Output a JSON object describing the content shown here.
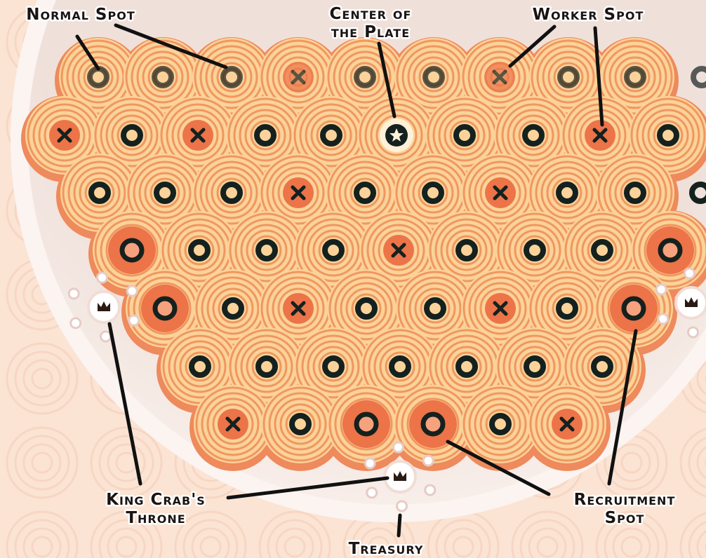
{
  "labels": [
    {
      "lines": [
        "Normal Spot"
      ]
    },
    {
      "lines": [
        "Center of",
        "the Plate"
      ]
    },
    {
      "lines": [
        "Worker Spot"
      ]
    },
    {
      "lines": [
        "King Crab's",
        "Throne"
      ]
    },
    {
      "lines": [
        "Recruitment",
        "Spot"
      ]
    },
    {
      "lines": [
        "Treasury"
      ]
    }
  ]
}
